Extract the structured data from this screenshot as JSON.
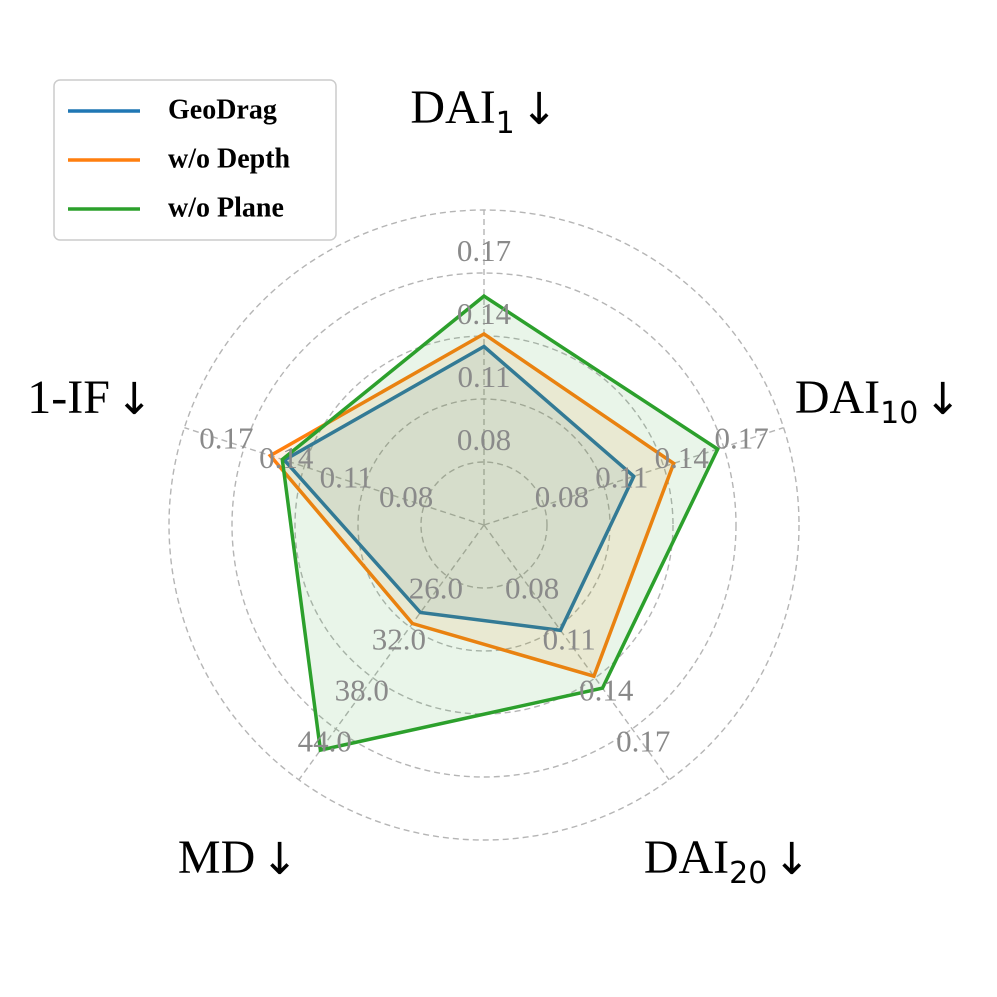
{
  "chart_data": {
    "type": "radar",
    "axes": [
      {
        "key": "dai1",
        "main": "DAI",
        "sub": "1",
        "arrow": "↓",
        "ticks": [
          "0.08",
          "0.11",
          "0.14",
          "0.17"
        ],
        "min": 0.05,
        "max": 0.2
      },
      {
        "key": "dai10",
        "main": "DAI",
        "sub": "10",
        "arrow": "↓",
        "ticks": [
          "0.08",
          "0.11",
          "0.14",
          "0.17"
        ],
        "min": 0.05,
        "max": 0.2
      },
      {
        "key": "dai20",
        "main": "DAI",
        "sub": "20",
        "arrow": "↓",
        "ticks": [
          "0.08",
          "0.11",
          "0.14",
          "0.17"
        ],
        "min": 0.05,
        "max": 0.2
      },
      {
        "key": "md",
        "main": "MD",
        "sub": "",
        "arrow": "↓",
        "ticks": [
          "26.0",
          "32.0",
          "38.0",
          "44.0"
        ],
        "min": 20.0,
        "max": 50.0
      },
      {
        "key": "if",
        "main": "1-IF",
        "sub": "",
        "arrow": "↓",
        "ticks": [
          "0.08",
          "0.11",
          "0.14",
          "0.17"
        ],
        "min": 0.05,
        "max": 0.2
      }
    ],
    "series": [
      {
        "name": "GeoDrag",
        "color": "#1f77b4",
        "values": [
          0.135,
          0.125,
          0.112,
          30.3,
          0.15
        ]
      },
      {
        "name": "w/o Depth",
        "color": "#ff7f0e",
        "values": [
          0.141,
          0.145,
          0.139,
          31.6,
          0.157
        ]
      },
      {
        "name": "w/o Plane",
        "color": "#2ca02c",
        "values": [
          0.159,
          0.167,
          0.146,
          46.5,
          0.151
        ]
      }
    ],
    "grid": true,
    "legend_position": "top-left"
  }
}
